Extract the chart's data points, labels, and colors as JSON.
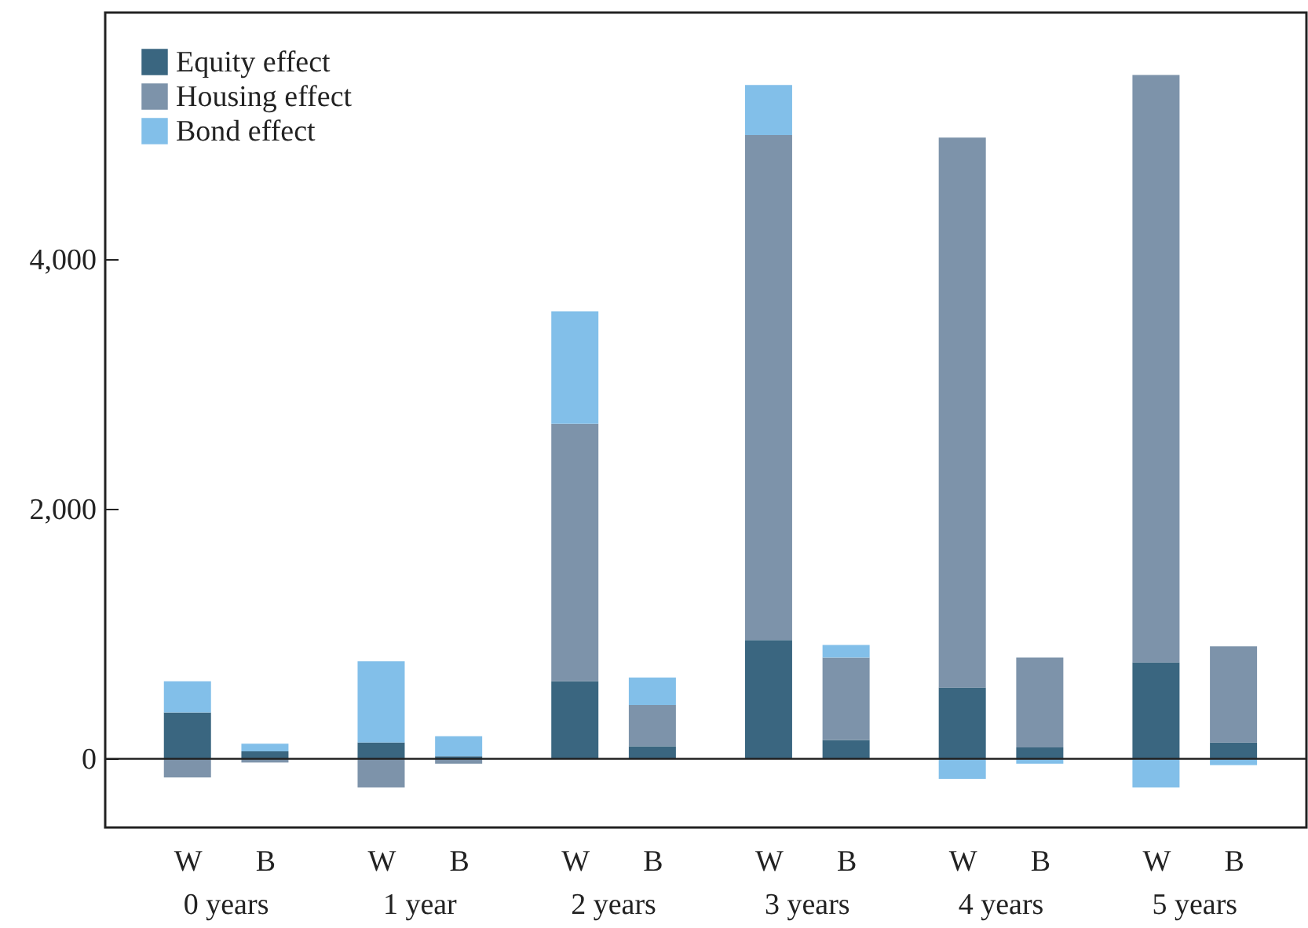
{
  "chart_data": {
    "type": "bar",
    "stacked": true,
    "categories": [
      "W",
      "B",
      "W",
      "B",
      "W",
      "B",
      "W",
      "B",
      "W",
      "B",
      "W",
      "B"
    ],
    "annotations": [
      "0 years",
      "1 year",
      "2 years",
      "3 years",
      "4 years",
      "5 years"
    ],
    "series": [
      {
        "name": "Equity effect",
        "color": "#3a6680",
        "values": [
          370,
          60,
          130,
          20,
          620,
          100,
          950,
          150,
          570,
          90,
          770,
          130
        ]
      },
      {
        "name": "Housing effect",
        "color": "#7d93aa",
        "values": [
          -150,
          -30,
          -230,
          -40,
          2060,
          330,
          4040,
          660,
          4400,
          720,
          4700,
          770
        ]
      },
      {
        "name": "Bond effect",
        "color": "#82bfe9",
        "values": [
          250,
          60,
          650,
          160,
          900,
          220,
          400,
          100,
          -160,
          -40,
          -230,
          -50
        ]
      }
    ],
    "ylim": [
      -550,
      5970
    ],
    "yticks": [
      {
        "value": 0,
        "label": "0"
      },
      {
        "value": 2000,
        "label": "2,000"
      },
      {
        "value": 4000,
        "label": "4,000"
      }
    ],
    "ref_lines": [
      {
        "axis": "y",
        "value": 0
      }
    ],
    "legend": "top left",
    "grid": false
  }
}
